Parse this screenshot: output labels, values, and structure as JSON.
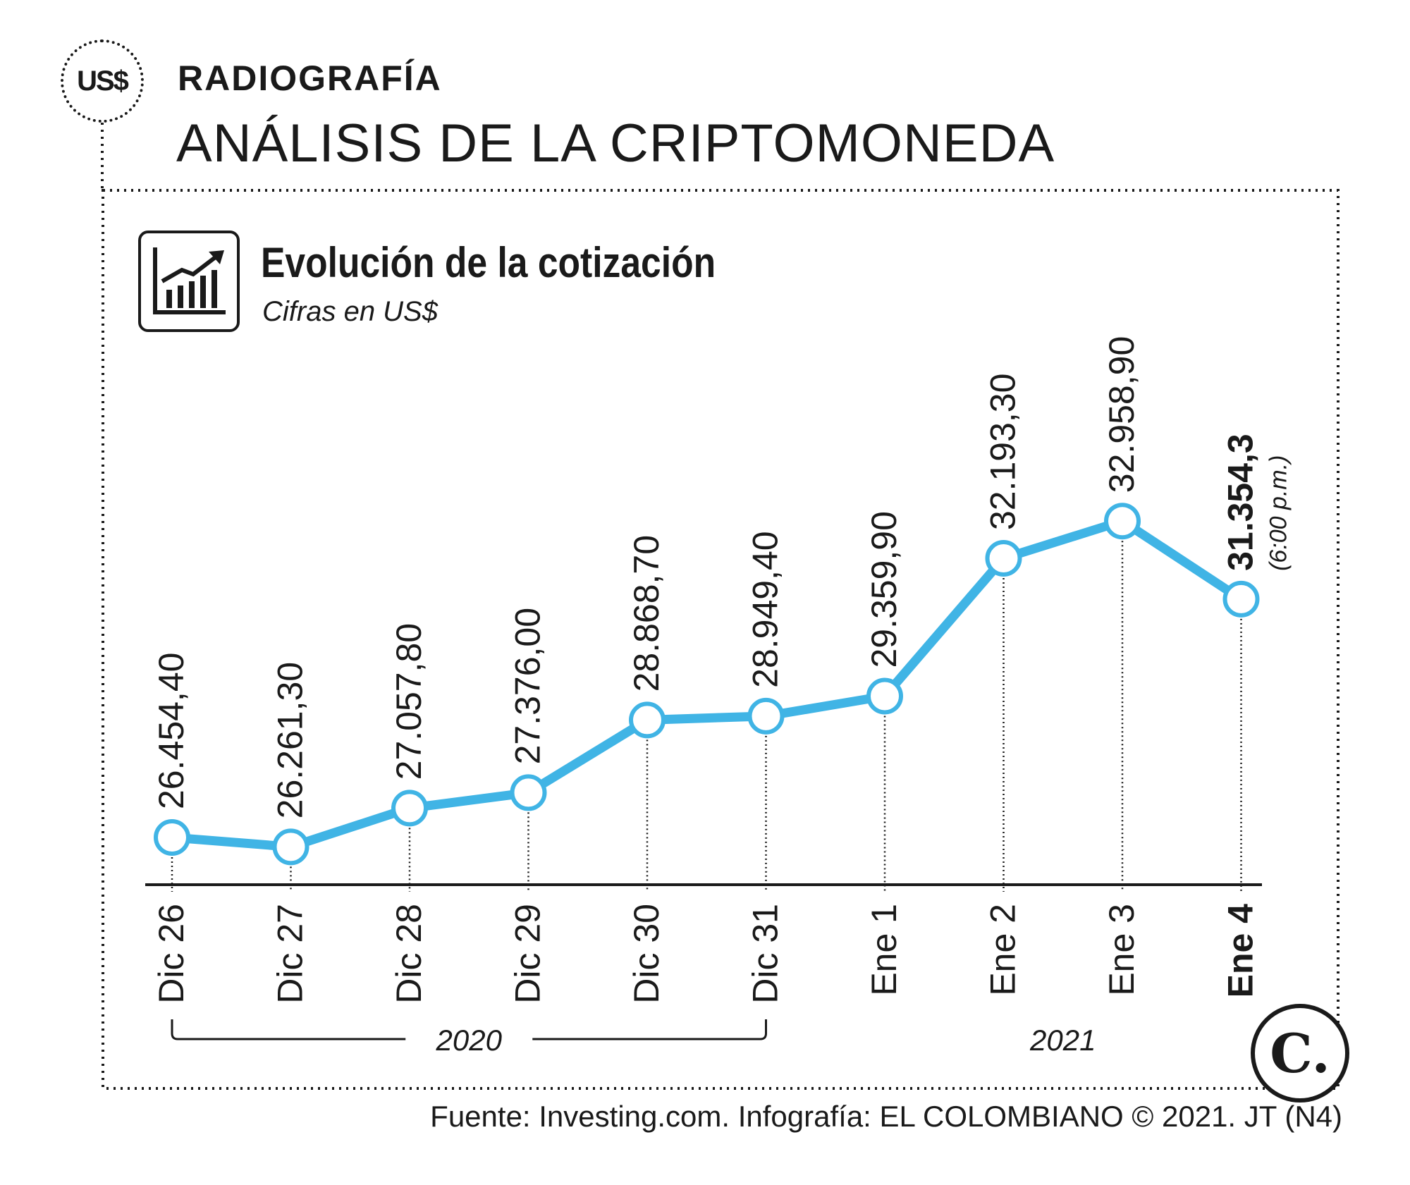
{
  "header": {
    "badge_text": "US$",
    "kicker": "RADIOGRAFÍA",
    "headline": "ANÁLISIS DE LA CRIPTOMONEDA"
  },
  "chart_data": {
    "type": "line",
    "title": "Evolución de la cotización",
    "subtitle": "Cifras en US$",
    "categories": [
      "Dic 26",
      "Dic 27",
      "Dic 28",
      "Dic 29",
      "Dic 30",
      "Dic 31",
      "Ene 1",
      "Ene 2",
      "Ene 3",
      "Ene 4"
    ],
    "values": [
      26454.4,
      26261.3,
      27057.8,
      27376.0,
      28868.7,
      28949.4,
      29359.9,
      32193.3,
      32958.9,
      31354.3
    ],
    "value_labels": [
      "26.454,40",
      "26.261,30",
      "27.057,80",
      "27.376,00",
      "28.868,70",
      "28.949,40",
      "29.359,90",
      "32.193,30",
      "32.958,90",
      "31.354,3"
    ],
    "highlight_index": 9,
    "highlight_note": "(6:00 p.m.)",
    "year_groups": [
      {
        "label": "2020",
        "from": 0,
        "to": 5
      },
      {
        "label": "2021",
        "from": 6,
        "to": 9
      }
    ],
    "line_color": "#40b4e5",
    "grid": false,
    "legend": "none"
  },
  "source": "Fuente: Investing.com. Infografía: EL COLOMBIANO © 2021. JT (N4)",
  "logo_text": "C."
}
